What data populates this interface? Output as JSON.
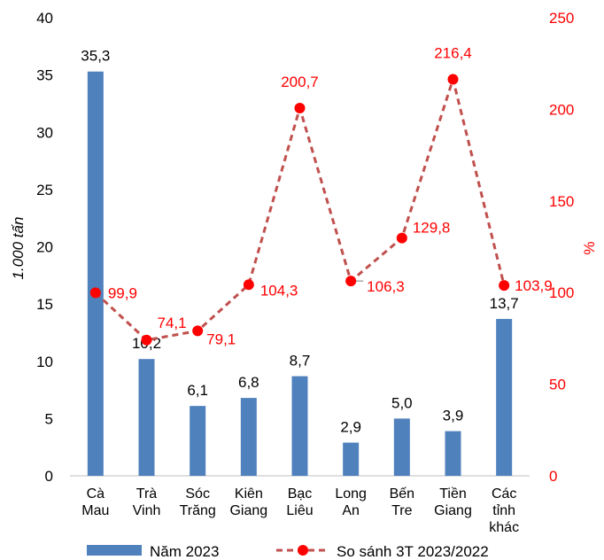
{
  "chart_data": {
    "type": "bar",
    "categories": [
      [
        "Cà",
        "Mau"
      ],
      [
        "Trà",
        "Vinh"
      ],
      [
        "Sóc",
        "Trăng"
      ],
      [
        "Kiên",
        "Giang"
      ],
      [
        "Bạc",
        "Liêu"
      ],
      [
        "Long",
        "An"
      ],
      [
        "Bến",
        "Tre"
      ],
      [
        "Tiền",
        "Giang"
      ],
      [
        "Các",
        "tỉnh",
        "khác"
      ]
    ],
    "ylabel": "1.000 tấn",
    "y2label": "%",
    "ylim": [
      0,
      40
    ],
    "y2lim": [
      0,
      250
    ],
    "yticks": [
      "0",
      "5",
      "10",
      "15",
      "20",
      "25",
      "30",
      "35",
      "40"
    ],
    "y2ticks": [
      "0",
      "50",
      "100",
      "150",
      "200",
      "250"
    ],
    "grid": false,
    "legend_position": "bottom",
    "series": [
      {
        "name": "Năm 2023",
        "type": "bar",
        "axis": "left",
        "color": "#4F81BD",
        "values": [
          35.3,
          10.2,
          6.1,
          6.8,
          8.7,
          2.9,
          5.0,
          3.9,
          13.7
        ],
        "labels": [
          "35,3",
          "10,2",
          "6,1",
          "6,8",
          "8,7",
          "2,9",
          "5,0",
          "3,9",
          "13,7"
        ]
      },
      {
        "name": "So sánh 3T 2023/2022",
        "type": "line",
        "style": "dashed",
        "axis": "right",
        "line_color": "#C0504D",
        "marker_color": "#FF0000",
        "label_color": "#FF0000",
        "values": [
          99.9,
          74.1,
          79.1,
          104.3,
          200.7,
          106.3,
          129.8,
          216.4,
          103.9
        ],
        "labels": [
          "99,9",
          "74,1",
          "79,1",
          "104,3",
          "200,7",
          "106,3",
          "129,8",
          "216,4",
          "103,9"
        ]
      }
    ]
  }
}
